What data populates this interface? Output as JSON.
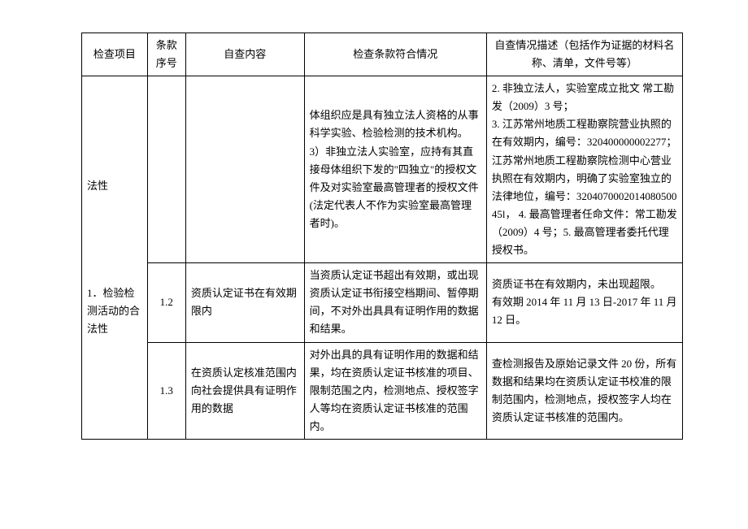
{
  "headers": {
    "c1": "检查项目",
    "c2": "条款序号",
    "c3": "自查内容",
    "c4": "检查条款符合情况",
    "c5": "自查情况描述（包括作为证据的材料名称、清单，文件号等）"
  },
  "spanned": {
    "project_cont": "法性",
    "project_main": "1．检验检测活动的合法性"
  },
  "rows": [
    {
      "clause": "",
      "content": "",
      "compliance": "体组织应是具有独立法人资格的从事科学实验、检验检测的技术机构。\n3）非独立法人实验室，应持有其直接母体组织下发的\"四独立\"的授权文件及对实验室最高管理者的授权文件(法定代表人不作为实验室最高管理者时)。",
      "desc": "2. 非独立法人，实验室成立批文 常工勘发（2009）3 号；\n3. 江苏常州地质工程勘察院营业执照的在有效期内，编号：320400000002277；江苏常州地质工程勘察院检测中心营业执照在有效期内，明确了实验室独立的法律地位，编号：320407000201408050045l， 4. 最高管理者任命文件：常工勘发（2009）4 号；5. 最高管理者委托代理授权书。"
    },
    {
      "clause": "1.2",
      "content": "资质认定证书在有效期限内",
      "compliance": "当资质认定证书超出有效期，或出现资质认定证书衔接空档期间、暂停期间，不对外出具具有证明作用的数据和结果。",
      "desc": "资质证书在有效期内，未出现超限。\n有效期 2014 年 11 月 13 日-2017 年 11 月 12 日。"
    },
    {
      "clause": "1.3",
      "content": "在资质认定核准范围内向社会提供具有证明作用的数据",
      "compliance": "对外出具的具有证明作用的数据和结果，均在资质认定证书核准的项目、限制范围之内，检测地点、授权签字人等均在资质认定证书核准的范围内。",
      "desc": "查检测报告及原始记录文件 20 份，所有数据和结果均在资质认定证书校准的限制范围内，检测地点，授权签字人均在资质认定证书核准的范围内。"
    }
  ]
}
